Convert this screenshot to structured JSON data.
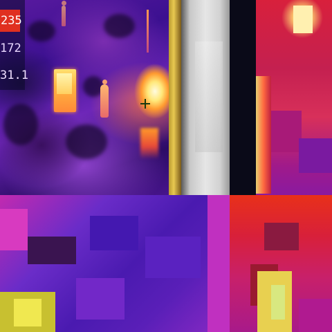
{
  "thermal_readout": {
    "max_temp": "235",
    "mid_temp": "172",
    "min_temp": "31.1"
  },
  "colors": {
    "max_badge": "#e03020",
    "palette_hot": "#ffe87a",
    "palette_cold": "#3b1090",
    "crosshair": "#1a3a10"
  },
  "icons": {
    "crosshair": "crosshair-icon"
  }
}
